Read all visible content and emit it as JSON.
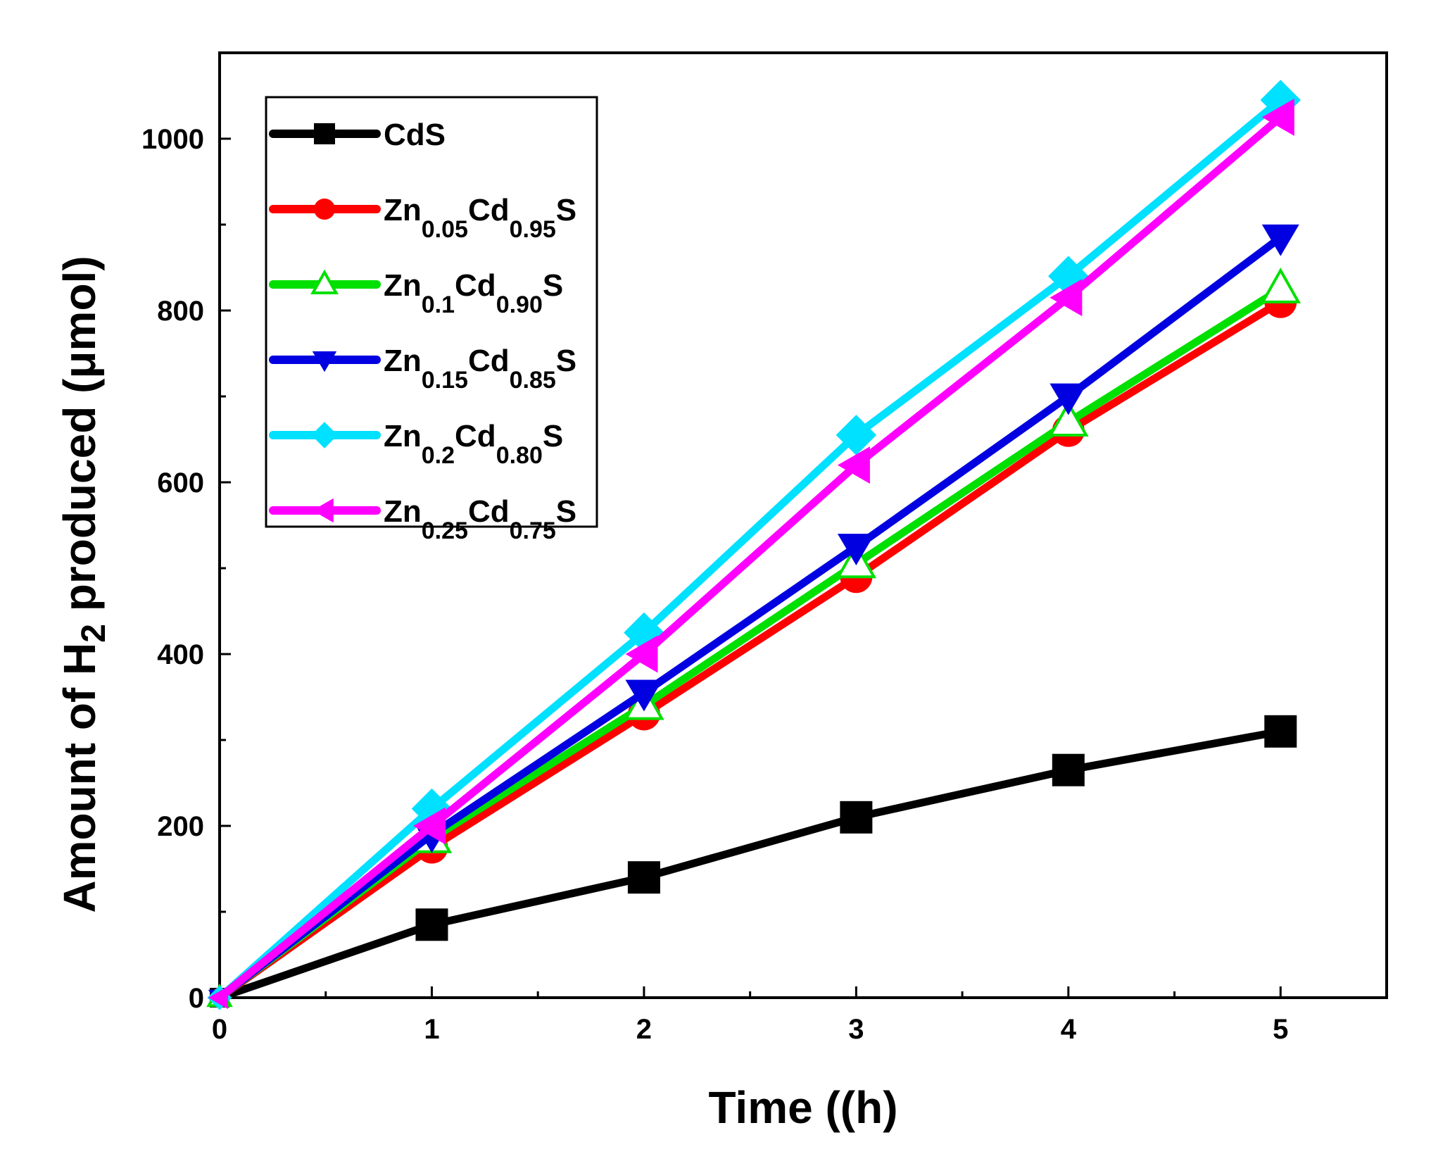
{
  "chart_data": {
    "type": "line",
    "xlabel": "Time ((h)",
    "ylabel": {
      "prefix": "Amount of H",
      "sub": "2",
      "suffix": " produced (μmol)"
    },
    "xlim": [
      0,
      5.5
    ],
    "ylim": [
      0,
      1100
    ],
    "x_ticks": [
      "0",
      "1",
      "2",
      "3",
      "4",
      "5"
    ],
    "y_ticks": [
      "0",
      "200",
      "400",
      "600",
      "800",
      "1000"
    ],
    "grid": false,
    "legend_position": "top-left",
    "x": [
      0,
      1,
      2,
      3,
      4,
      5
    ],
    "series": [
      {
        "name": "CdS",
        "label_parts": [
          {
            "t": "CdS",
            "sub": false
          }
        ],
        "color": "#000000",
        "marker": "square",
        "values": [
          0,
          85,
          140,
          210,
          265,
          310
        ]
      },
      {
        "name": "Zn0.05Cd0.95S",
        "label_parts": [
          {
            "t": "Zn",
            "sub": false
          },
          {
            "t": "0.05",
            "sub": true
          },
          {
            "t": "Cd",
            "sub": false
          },
          {
            "t": "0.95",
            "sub": true
          },
          {
            "t": "S",
            "sub": false
          }
        ],
        "color": "#ff0000",
        "marker": "circle",
        "values": [
          0,
          175,
          330,
          490,
          660,
          810
        ]
      },
      {
        "name": "Zn0.1Cd0.90S",
        "label_parts": [
          {
            "t": "Zn",
            "sub": false
          },
          {
            "t": "0.1",
            "sub": true
          },
          {
            "t": "Cd",
            "sub": false
          },
          {
            "t": "0.90",
            "sub": true
          },
          {
            "t": "S",
            "sub": false
          }
        ],
        "color": "#00e000",
        "marker": "triangle-up-open",
        "values": [
          0,
          185,
          340,
          505,
          670,
          825
        ]
      },
      {
        "name": "Zn0.15Cd0.85S",
        "label_parts": [
          {
            "t": "Zn",
            "sub": false
          },
          {
            "t": "0.15",
            "sub": true
          },
          {
            "t": "Cd",
            "sub": false
          },
          {
            "t": "0.85",
            "sub": true
          },
          {
            "t": "S",
            "sub": false
          }
        ],
        "color": "#0000e0",
        "marker": "triangle-down",
        "values": [
          0,
          190,
          355,
          525,
          700,
          885
        ]
      },
      {
        "name": "Zn0.2Cd0.80S",
        "label_parts": [
          {
            "t": "Zn",
            "sub": false
          },
          {
            "t": "0.2",
            "sub": true
          },
          {
            "t": "Cd",
            "sub": false
          },
          {
            "t": "0.80",
            "sub": true
          },
          {
            "t": "S",
            "sub": false
          }
        ],
        "color": "#00e0ff",
        "marker": "diamond",
        "values": [
          0,
          220,
          425,
          655,
          840,
          1045
        ]
      },
      {
        "name": "Zn0.25Cd0.75S",
        "label_parts": [
          {
            "t": "Zn",
            "sub": false
          },
          {
            "t": "0.25",
            "sub": true
          },
          {
            "t": "Cd",
            "sub": false
          },
          {
            "t": "0.75",
            "sub": true
          },
          {
            "t": "S",
            "sub": false
          }
        ],
        "color": "#ff00ff",
        "marker": "triangle-left",
        "values": [
          0,
          200,
          400,
          620,
          815,
          1025
        ]
      }
    ]
  }
}
